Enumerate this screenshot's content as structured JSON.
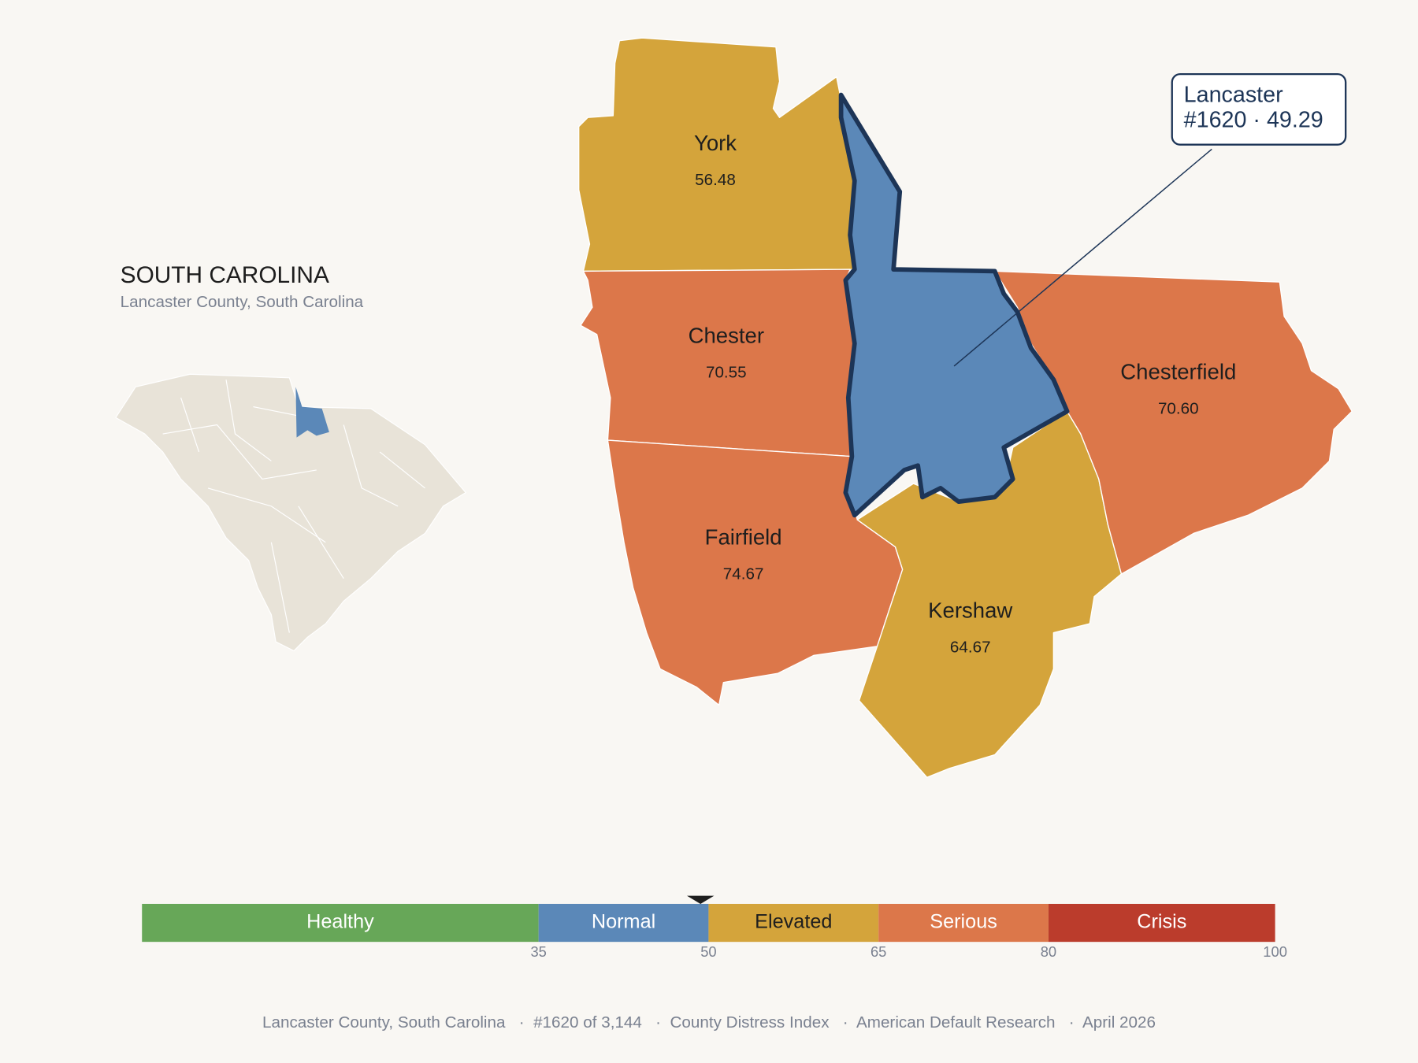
{
  "header": {
    "title": "SOUTH CAROLINA",
    "subtitle": "Lancaster County, South Carolina"
  },
  "counties": [
    {
      "name": "York",
      "value": 56.48
    },
    {
      "name": "Chester",
      "value": 70.55
    },
    {
      "name": "Fairfield",
      "value": 74.67
    },
    {
      "name": "Kershaw",
      "value": 64.67
    },
    {
      "name": "Chesterfield",
      "value": 70.6,
      "value_label": "70.60"
    },
    {
      "name": "Lancaster",
      "value": 49.29
    }
  ],
  "callout": {
    "lines": [
      "Lancaster",
      "#1620 · 49.29"
    ]
  },
  "scale": {
    "lim": [
      0,
      100
    ],
    "ticks": [
      35,
      50,
      65,
      80,
      100
    ],
    "bands": [
      {
        "label": "Healthy",
        "color": "#67a758"
      },
      {
        "label": "Normal",
        "color": "#5b88b8"
      },
      {
        "label": "Elevated",
        "color": "#d4a43b"
      },
      {
        "label": "Serious",
        "color": "#dc774a"
      },
      {
        "label": "Crisis",
        "color": "#bb3c2c"
      }
    ]
  },
  "footer": "Lancaster County, South Carolina   ·  #1620 of 3,144   ·  County Distress Index   ·  American Default Research   ·  April 2026"
}
